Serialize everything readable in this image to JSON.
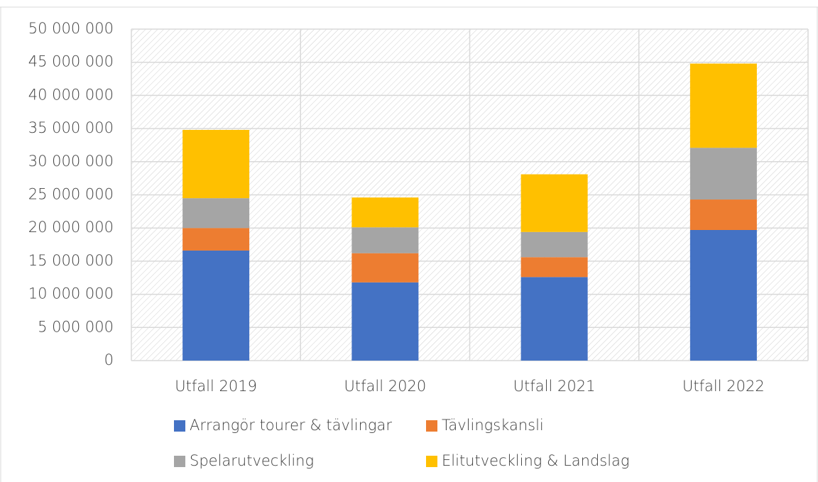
{
  "chart_data": {
    "type": "bar",
    "stacked": true,
    "categories": [
      "Utfall 2019",
      "Utfall 2020",
      "Utfall 2021",
      "Utfall 2022"
    ],
    "series": [
      {
        "name": "Arrangör tourer & tävlingar",
        "color": "#4472c4",
        "values": [
          16600000,
          11800000,
          12600000,
          19700000
        ]
      },
      {
        "name": "Tävlingskansli",
        "color": "#ed7d31",
        "values": [
          3400000,
          4400000,
          3000000,
          4600000
        ]
      },
      {
        "name": "Spelarutveckling",
        "color": "#a5a5a5",
        "values": [
          4500000,
          3900000,
          3800000,
          7800000
        ]
      },
      {
        "name": "Elitutveckling & Landslag",
        "color": "#ffc000",
        "values": [
          10300000,
          4500000,
          8700000,
          12700000
        ]
      }
    ],
    "ylim": [
      0,
      50000000
    ],
    "yticks": [
      0,
      {
        "value": 5000000,
        "label": "5 000 000"
      },
      {
        "value": 10000000,
        "label": "10 000 000"
      },
      {
        "value": 15000000,
        "label": "15 000 000"
      },
      {
        "value": 20000000,
        "label": "20 000 000"
      },
      {
        "value": 25000000,
        "label": "25 000 000"
      },
      {
        "value": 30000000,
        "label": "30 000 000"
      },
      {
        "value": 35000000,
        "label": "35 000 000"
      },
      {
        "value": 40000000,
        "label": "40 000 000"
      },
      {
        "value": 45000000,
        "label": "45 000 000"
      },
      {
        "value": 50000000,
        "label": "50 000 000"
      }
    ],
    "grid": true,
    "legend": "bottom"
  }
}
